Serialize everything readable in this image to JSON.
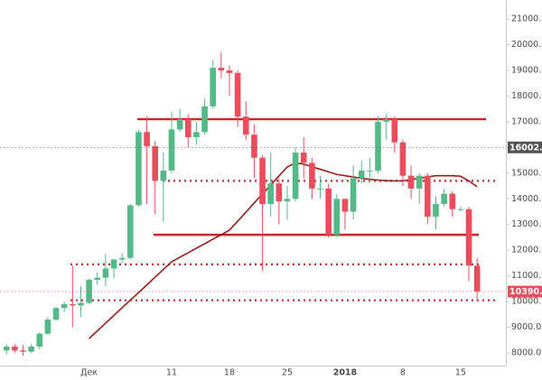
{
  "chart_data": {
    "type": "candlestick",
    "categories": [
      null,
      null,
      null,
      null,
      null,
      null,
      null,
      null,
      null,
      null,
      "Дек",
      null,
      null,
      null,
      null,
      null,
      null,
      null,
      null,
      null,
      "11",
      null,
      null,
      null,
      null,
      null,
      null,
      "18",
      null,
      null,
      null,
      null,
      null,
      null,
      "25",
      null,
      null,
      null,
      null,
      null,
      null,
      "2018",
      null,
      null,
      null,
      null,
      null,
      null,
      "8",
      null,
      null,
      null,
      null,
      null,
      null,
      "15",
      null,
      null
    ],
    "open": [
      8100,
      8250,
      8100,
      8050,
      8250,
      8750,
      9300,
      9750,
      9900,
      9850,
      9950,
      10850,
      10930,
      11290,
      11640,
      11700,
      13750,
      16600,
      16050,
      14700,
      15100,
      16700,
      17100,
      16400,
      16600,
      17600,
      19100,
      19000,
      18900,
      17200,
      16500,
      15600,
      13800,
      14600,
      13900,
      14000,
      15800,
      15400,
      14400,
      14400,
      12600,
      14000,
      13500,
      14800,
      15100,
      15100,
      17000,
      17100,
      16200,
      14900,
      14400,
      14900,
      13300,
      13800,
      14200,
      13600,
      13600,
      11400
    ],
    "high": [
      8350,
      8350,
      8300,
      8350,
      8800,
      9400,
      9800,
      10000,
      11400,
      10600,
      10900,
      11150,
      11850,
      11650,
      11900,
      13800,
      16700,
      17200,
      16250,
      15800,
      17400,
      17500,
      17300,
      17000,
      17900,
      19400,
      19700,
      19200,
      19000,
      17800,
      16900,
      15700,
      15800,
      14800,
      14500,
      16000,
      16400,
      15600,
      14900,
      14600,
      14200,
      14000,
      15300,
      15500,
      15600,
      17200,
      17300,
      17200,
      16300,
      15300,
      15000,
      15000,
      14100,
      14400,
      14300,
      13700,
      13700,
      11700
    ],
    "low": [
      7950,
      8000,
      7900,
      8000,
      8150,
      8700,
      9250,
      9600,
      9000,
      9400,
      9900,
      10650,
      10600,
      10900,
      11500,
      11650,
      13700,
      13800,
      13400,
      13100,
      15000,
      16600,
      16000,
      16100,
      16500,
      17500,
      18700,
      18000,
      16800,
      16300,
      14800,
      11200,
      13300,
      13000,
      13200,
      13900,
      14800,
      14000,
      14000,
      12500,
      12500,
      12800,
      13200,
      14600,
      14600,
      15000,
      16300,
      15800,
      14500,
      14000,
      13800,
      13000,
      12800,
      13700,
      13300,
      13500,
      10800,
      10000
    ],
    "close": [
      8250,
      8100,
      8050,
      8250,
      8750,
      9300,
      9750,
      9900,
      9850,
      9950,
      10850,
      10930,
      11290,
      11640,
      11700,
      13750,
      16600,
      16050,
      14700,
      15100,
      16700,
      17100,
      16400,
      16600,
      17600,
      19100,
      19000,
      18900,
      17200,
      16500,
      15600,
      13800,
      14600,
      13900,
      14000,
      15800,
      15400,
      14400,
      14400,
      12600,
      14000,
      13500,
      14800,
      15100,
      15100,
      17000,
      17100,
      16200,
      14900,
      14400,
      14900,
      13300,
      13800,
      14200,
      13600,
      13600,
      11400,
      10390
    ],
    "up_color": "#53b987",
    "down_color": "#eb4d5c",
    "series": [
      {
        "color": "#9b1c14",
        "values": [
          null,
          null,
          null,
          null,
          null,
          null,
          null,
          null,
          null,
          null,
          8560,
          8860,
          9160,
          9460,
          9760,
          10060,
          10350,
          10650,
          10950,
          11250,
          11550,
          11730,
          11900,
          12080,
          12250,
          12430,
          12600,
          12780,
          13130,
          13480,
          13840,
          14190,
          14540,
          14890,
          15240,
          15400,
          15350,
          15250,
          15150,
          15050,
          14950,
          14900,
          14850,
          14800,
          14760,
          14730,
          14710,
          14700,
          14700,
          14750,
          14800,
          14850,
          14900,
          14900,
          14900,
          14880,
          14700,
          14470
        ]
      }
    ],
    "levels": [
      {
        "value": 17100,
        "style": "solid",
        "color": "#d0232a"
      },
      {
        "value": 12600,
        "style": "solid",
        "color": "#d0232a"
      },
      {
        "value": 14700,
        "style": "dotted",
        "color": "#d0232a"
      },
      {
        "value": 11450,
        "style": "dotted",
        "color": "#d0232a"
      },
      {
        "value": 10050,
        "style": "dotted",
        "color": "#d0232a"
      }
    ],
    "price_labels": [
      {
        "value": 16002.2,
        "label": "16002.20",
        "color": "#555555"
      },
      {
        "value": 10390,
        "label": "10390.00",
        "color": "#eb4d5c"
      }
    ],
    "ylim": [
      7510,
      21740
    ],
    "yticks": [
      {
        "value": 8000,
        "label": "8000.00"
      },
      {
        "value": 9000,
        "label": "9000.00"
      },
      {
        "value": 10000,
        "label": "10000.00"
      },
      {
        "value": 11000,
        "label": "11000.00"
      },
      {
        "value": 12000,
        "label": "12000.00"
      },
      {
        "value": 13000,
        "label": "13000.00"
      },
      {
        "value": 14000,
        "label": "14000.00"
      },
      {
        "value": 15000,
        "label": "15000.00"
      },
      {
        "value": 16000,
        "label": "16000.00"
      },
      {
        "value": 17000,
        "label": "17000.00"
      },
      {
        "value": 18000,
        "label": "18000.00"
      },
      {
        "value": 19000,
        "label": "19000.00"
      },
      {
        "value": 20000,
        "label": "20000.00"
      },
      {
        "value": 21000,
        "label": "21000.00"
      }
    ]
  }
}
